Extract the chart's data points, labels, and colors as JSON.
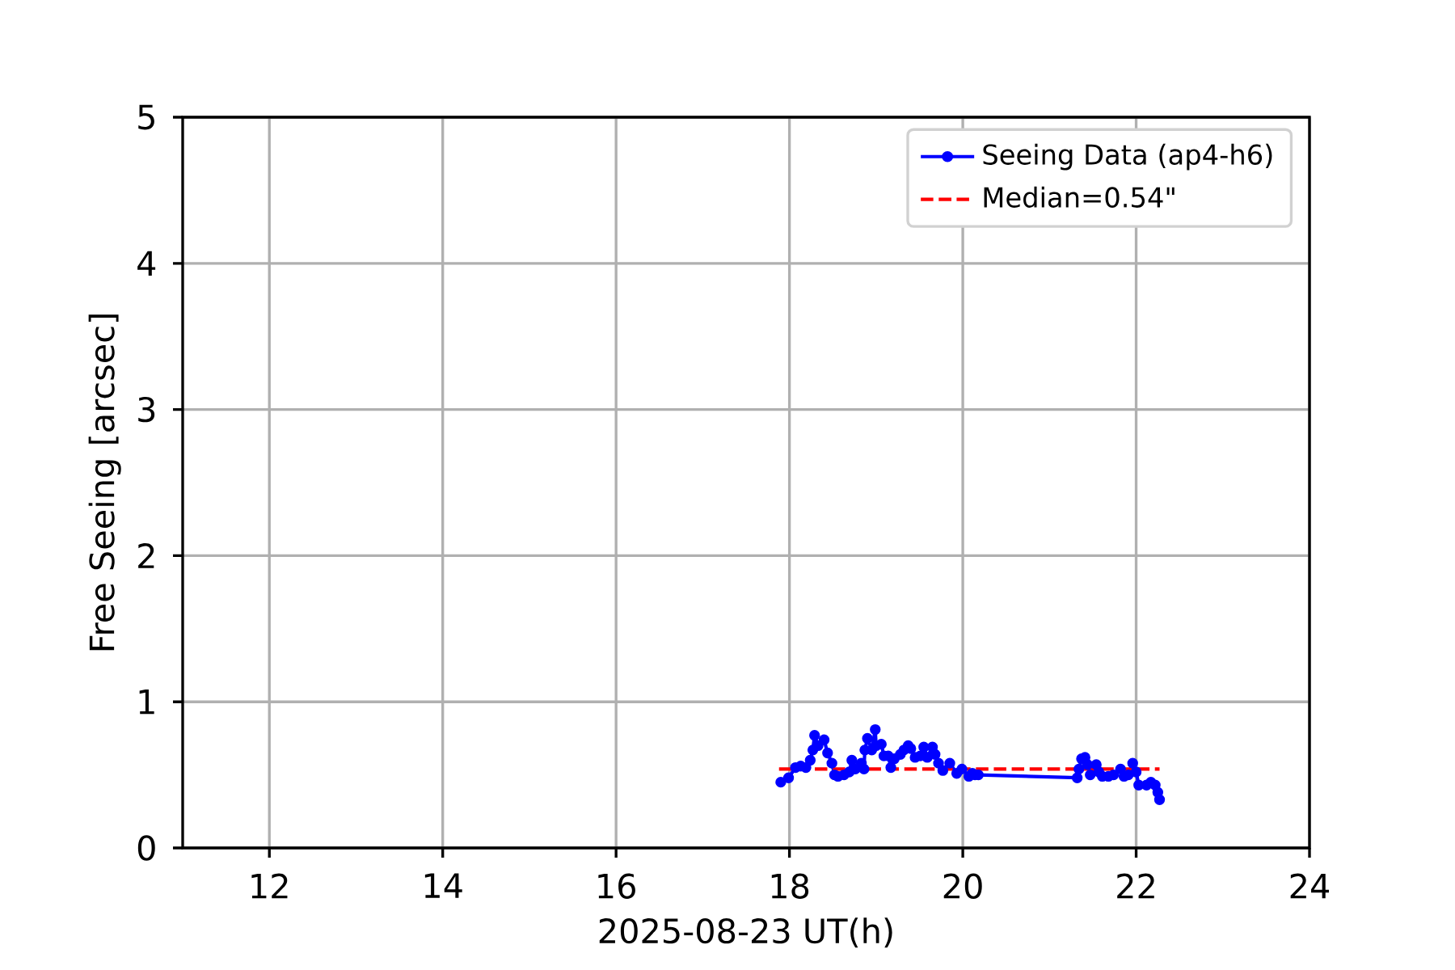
{
  "chart_data": {
    "type": "line",
    "xlabel": "2025-08-23 UT(h)",
    "ylabel": "Free Seeing [arcsec]",
    "xlim": [
      11,
      24
    ],
    "xticks": [
      12,
      14,
      16,
      18,
      20,
      22,
      24
    ],
    "ylim": [
      0,
      5
    ],
    "yticks": [
      0,
      1,
      2,
      3,
      4,
      5
    ],
    "grid": true,
    "legend": "top right",
    "series": [
      {
        "name": "Seeing Data (ap4-h6)",
        "color": "#0000ff",
        "marker": "circle",
        "line_style": "solid",
        "x": [
          17.9,
          17.99,
          18.07,
          18.13,
          18.19,
          18.24,
          18.27,
          18.29,
          18.33,
          18.4,
          18.44,
          18.49,
          18.52,
          18.56,
          18.63,
          18.69,
          18.72,
          18.76,
          18.83,
          18.86,
          18.87,
          18.9,
          18.95,
          18.99,
          19.0,
          19.06,
          19.09,
          19.14,
          19.17,
          19.21,
          19.28,
          19.32,
          19.37,
          19.4,
          19.45,
          19.51,
          19.55,
          19.59,
          19.65,
          19.68,
          19.72,
          19.77,
          19.85,
          19.93,
          19.99,
          20.07,
          20.11,
          20.14,
          20.18,
          21.32,
          21.34,
          21.37,
          21.41,
          21.44,
          21.47,
          21.54,
          21.57,
          21.61,
          21.68,
          21.74,
          21.82,
          21.86,
          21.91,
          21.96,
          22.0,
          22.03,
          22.12,
          22.17,
          22.22,
          22.25,
          22.27
        ],
        "values": [
          0.45,
          0.48,
          0.55,
          0.56,
          0.55,
          0.6,
          0.67,
          0.77,
          0.7,
          0.74,
          0.65,
          0.58,
          0.5,
          0.49,
          0.5,
          0.52,
          0.6,
          0.54,
          0.58,
          0.54,
          0.67,
          0.75,
          0.67,
          0.81,
          0.7,
          0.71,
          0.63,
          0.63,
          0.55,
          0.61,
          0.64,
          0.67,
          0.7,
          0.68,
          0.62,
          0.63,
          0.69,
          0.62,
          0.69,
          0.64,
          0.58,
          0.53,
          0.58,
          0.51,
          0.54,
          0.49,
          0.51,
          0.5,
          0.5,
          0.48,
          0.54,
          0.61,
          0.62,
          0.57,
          0.5,
          0.57,
          0.52,
          0.49,
          0.49,
          0.5,
          0.54,
          0.49,
          0.5,
          0.58,
          0.52,
          0.43,
          0.43,
          0.45,
          0.43,
          0.38,
          0.33
        ]
      },
      {
        "name": "Median=0.54\"",
        "color": "#ff0000",
        "marker": "none",
        "line_style": "dashed",
        "x": [
          17.88,
          22.27
        ],
        "values": [
          0.54,
          0.54
        ]
      }
    ]
  }
}
